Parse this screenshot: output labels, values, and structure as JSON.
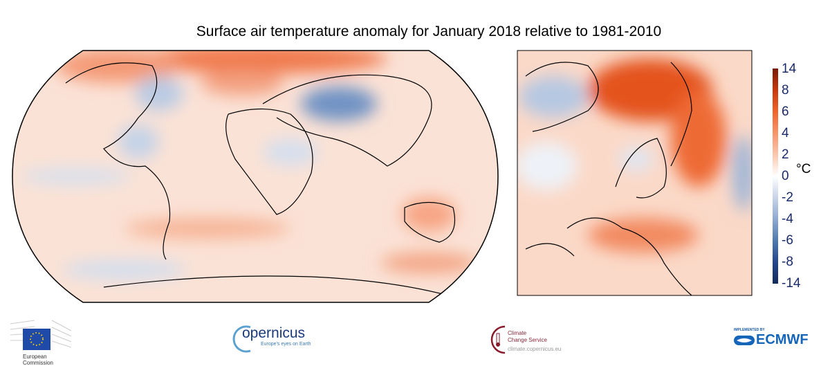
{
  "title": "Surface air temperature anomaly for January 2018 relative to 1981-2010",
  "colorbar": {
    "unit": "°C",
    "ticks": [
      "14",
      "8",
      "6",
      "4",
      "2",
      "0",
      "-2",
      "-4",
      "-6",
      "-8",
      "-14"
    ],
    "colors": {
      "max": "#7a1a06",
      "warm": "#e8501a",
      "neutral": "#ffffff",
      "cool": "#5b86bd",
      "min": "#142a5c"
    }
  },
  "maps": {
    "global": {
      "projection": "Robinson"
    },
    "europe": {
      "region": "Europe / Arctic"
    }
  },
  "logos": {
    "ec": {
      "line1": "European",
      "line2": "Commission"
    },
    "copernicus": {
      "name": "opernicus",
      "tagline": "Europe's eyes on Earth"
    },
    "c3s": {
      "line1": "Climate",
      "line2": "Change Service",
      "url": "climate.copernicus.eu"
    },
    "ecmwf": {
      "pre": "IMPLEMENTED BY",
      "name": "ECMWF"
    }
  }
}
